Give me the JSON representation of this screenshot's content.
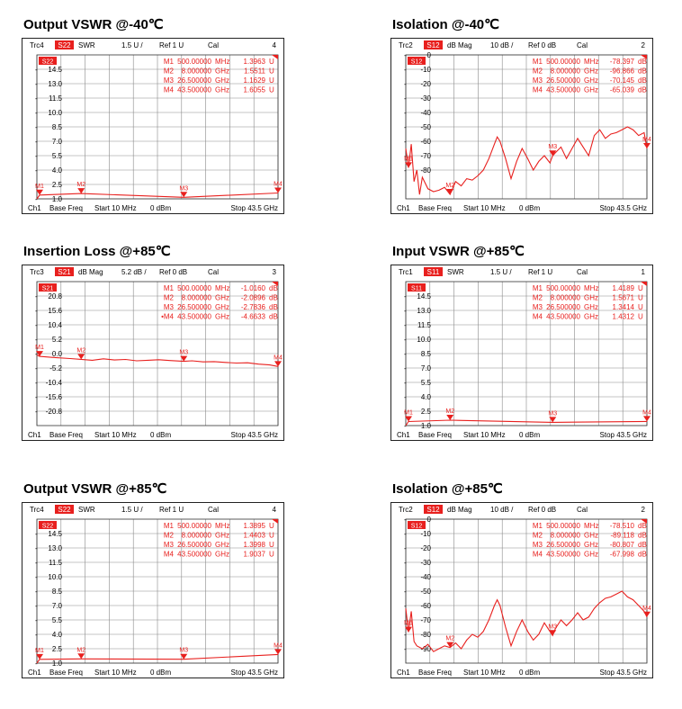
{
  "colors": {
    "trace": "#e8201e",
    "grid": "#8a8a8a",
    "text": "#000000",
    "marker": "#e8201e"
  },
  "charts": [
    {
      "title": "Output VSWR @-40℃",
      "header": {
        "trc": "Trc4",
        "param": "S22",
        "format": "SWR",
        "scale": "1.5 U /",
        "ref": "Ref 1 U",
        "cal": "Cal",
        "num": "4"
      },
      "footer": {
        "ch": "Ch1",
        "base": "Base Freq",
        "start": "Start  10 MHz",
        "power": "0 dBm",
        "stop": "Stop  43.5 GHz"
      },
      "marker_table": [
        {
          "name": "M1",
          "freq": "500.00000",
          "unit": "MHz",
          "value": "1.3963",
          "vunit": "U"
        },
        {
          "name": "M2",
          "freq": "8.000000",
          "unit": "GHz",
          "value": "1.5511",
          "vunit": "U"
        },
        {
          "name": "M3",
          "freq": "26.500000",
          "unit": "GHz",
          "value": "1.1629",
          "vunit": "U"
        },
        {
          "name": "M4",
          "freq": "43.500000",
          "unit": "GHz",
          "value": "1.6055",
          "vunit": "U"
        }
      ]
    },
    {
      "title": "Isolation @-40℃",
      "header": {
        "trc": "Trc2",
        "param": "S12",
        "format": "dB Mag",
        "scale": "10 dB /",
        "ref": "Ref 0 dB",
        "cal": "Cal",
        "num": "2"
      },
      "footer": {
        "ch": "Ch1",
        "base": "Base Freq",
        "start": "Start  10 MHz",
        "power": "0 dBm",
        "stop": "Stop  43.5 GHz"
      },
      "marker_table": [
        {
          "name": "M1",
          "freq": "500.00000",
          "unit": "MHz",
          "value": "-78.397",
          "vunit": "dB"
        },
        {
          "name": "M2",
          "freq": "8.000000",
          "unit": "GHz",
          "value": "-96.866",
          "vunit": "dB"
        },
        {
          "name": "M3",
          "freq": "26.500000",
          "unit": "GHz",
          "value": "-70.145",
          "vunit": "dB"
        },
        {
          "name": "M4",
          "freq": "43.500000",
          "unit": "GHz",
          "value": "-65.039",
          "vunit": "dB"
        }
      ]
    },
    {
      "title": "Insertion Loss @+85℃",
      "header": {
        "trc": "Trc3",
        "param": "S21",
        "format": "dB Mag",
        "scale": "5.2 dB /",
        "ref": "Ref 0 dB",
        "cal": "Cal",
        "num": "3"
      },
      "footer": {
        "ch": "Ch1",
        "base": "Base Freq",
        "start": "Start  10 MHz",
        "power": "0 dBm",
        "stop": "Stop  43.5 GHz"
      },
      "marker_table": [
        {
          "name": "M1",
          "freq": "500.00000",
          "unit": "MHz",
          "value": "-1.0160",
          "vunit": "dB"
        },
        {
          "name": "M2",
          "freq": "8.000000",
          "unit": "GHz",
          "value": "-2.0896",
          "vunit": "dB"
        },
        {
          "name": "M3",
          "freq": "26.500000",
          "unit": "GHz",
          "value": "-2.7836",
          "vunit": "dB"
        },
        {
          "name": "•M4",
          "freq": "43.500000",
          "unit": "GHz",
          "value": "-4.6633",
          "vunit": "dB"
        }
      ]
    },
    {
      "title": "Input VSWR @+85℃",
      "header": {
        "trc": "Trc1",
        "param": "S11",
        "format": "SWR",
        "scale": "1.5 U /",
        "ref": "Ref 1 U",
        "cal": "Cal",
        "num": "1"
      },
      "footer": {
        "ch": "Ch1",
        "base": "Base Freq",
        "start": "Start  10 MHz",
        "power": "0 dBm",
        "stop": "Stop  43.5 GHz"
      },
      "marker_table": [
        {
          "name": "M1",
          "freq": "500.00000",
          "unit": "MHz",
          "value": "1.4189",
          "vunit": "U"
        },
        {
          "name": "M2",
          "freq": "8.000000",
          "unit": "GHz",
          "value": "1.5671",
          "vunit": "U"
        },
        {
          "name": "M3",
          "freq": "26.500000",
          "unit": "GHz",
          "value": "1.3414",
          "vunit": "U"
        },
        {
          "name": "M4",
          "freq": "43.500000",
          "unit": "GHz",
          "value": "1.4312",
          "vunit": "U"
        }
      ]
    },
    {
      "title": "Output VSWR @+85℃",
      "header": {
        "trc": "Trc4",
        "param": "S22",
        "format": "SWR",
        "scale": "1.5 U /",
        "ref": "Ref 1 U",
        "cal": "Cal",
        "num": "4"
      },
      "footer": {
        "ch": "Ch1",
        "base": "Base Freq",
        "start": "Start  10 MHz",
        "power": "0 dBm",
        "stop": "Stop  43.5 GHz"
      },
      "marker_table": [
        {
          "name": "M1",
          "freq": "500.00000",
          "unit": "MHz",
          "value": "1.3895",
          "vunit": "U"
        },
        {
          "name": "M2",
          "freq": "8.000000",
          "unit": "GHz",
          "value": "1.4403",
          "vunit": "U"
        },
        {
          "name": "M3",
          "freq": "26.500000",
          "unit": "GHz",
          "value": "1.3998",
          "vunit": "U"
        },
        {
          "name": "M4",
          "freq": "43.500000",
          "unit": "GHz",
          "value": "1.9037",
          "vunit": "U"
        }
      ]
    },
    {
      "title": "Isolation @+85℃",
      "header": {
        "trc": "Trc2",
        "param": "S12",
        "format": "dB Mag",
        "scale": "10 dB /",
        "ref": "Ref 0 dB",
        "cal": "Cal",
        "num": "2"
      },
      "footer": {
        "ch": "Ch1",
        "base": "Base Freq",
        "start": "Start  10 MHz",
        "power": "0 dBm",
        "stop": "Stop  43.5 GHz"
      },
      "marker_table": [
        {
          "name": "M1",
          "freq": "500.00000",
          "unit": "MHz",
          "value": "-78.510",
          "vunit": "dB"
        },
        {
          "name": "M2",
          "freq": "8.000000",
          "unit": "GHz",
          "value": "-89.118",
          "vunit": "dB"
        },
        {
          "name": "M3",
          "freq": "26.500000",
          "unit": "GHz",
          "value": "-80.807",
          "vunit": "dB"
        },
        {
          "name": "M4",
          "freq": "43.500000",
          "unit": "GHz",
          "value": "-67.998",
          "vunit": "dB"
        }
      ]
    }
  ],
  "chart_data": [
    {
      "type": "line",
      "xlim": [
        0.01,
        43.5
      ],
      "ylim": [
        1.0,
        16.0
      ],
      "yticks": [
        "14.5",
        "13.0",
        "11.5",
        "10.0",
        "8.5",
        "7.0",
        "5.5",
        "4.0",
        "2.5",
        "1.0"
      ],
      "ytick_values": [
        14.5,
        13.0,
        11.5,
        10.0,
        8.5,
        7.0,
        5.5,
        4.0,
        2.5,
        1.0
      ],
      "series": [
        {
          "x": [
            0.01,
            0.5,
            8.0,
            26.5,
            43.5
          ],
          "values": [
            1.0,
            1.3963,
            1.5511,
            1.1629,
            1.6055
          ]
        }
      ],
      "markers": [
        {
          "name": "M1",
          "x": 0.5,
          "y": 1.3963
        },
        {
          "name": "M2",
          "x": 8.0,
          "y": 1.5511
        },
        {
          "name": "M3",
          "x": 26.5,
          "y": 1.1629
        },
        {
          "name": "M4",
          "x": 43.5,
          "y": 1.6055
        }
      ]
    },
    {
      "type": "line",
      "xlim": [
        0.01,
        43.5
      ],
      "ylim": [
        -100,
        0
      ],
      "yticks": [
        "0",
        "-10",
        "-20",
        "-30",
        "-40",
        "-50",
        "-60",
        "-70",
        "-80"
      ],
      "ytick_values": [
        0,
        -10,
        -20,
        -30,
        -40,
        -50,
        -60,
        -70,
        -80
      ],
      "series": [
        {
          "x": [
            0.01,
            0.5,
            1,
            1.5,
            2,
            2.5,
            3,
            4,
            5,
            6,
            7,
            8,
            9,
            10,
            11,
            12,
            13,
            14,
            15,
            16,
            16.5,
            17,
            18,
            19,
            20,
            21,
            22,
            23,
            24,
            25,
            26,
            26.5,
            27,
            28,
            29,
            30,
            31,
            32,
            33,
            34,
            35,
            36,
            37,
            38,
            39,
            40,
            41,
            42,
            43,
            43.5
          ],
          "values": [
            -65,
            -78.4,
            -62,
            -88,
            -80,
            -97,
            -85,
            -93,
            -95,
            -94,
            -92,
            -96.9,
            -88,
            -91,
            -86,
            -87,
            -84,
            -80,
            -72,
            -62,
            -57,
            -60,
            -72,
            -86,
            -74,
            -65,
            -72,
            -80,
            -74,
            -70,
            -75,
            -70.1,
            -68,
            -64,
            -72,
            -65,
            -58,
            -64,
            -70,
            -56,
            -52,
            -58,
            -55,
            -54,
            -52,
            -50,
            -52,
            -56,
            -54,
            -65.0
          ]
        }
      ],
      "markers": [
        {
          "name": "M1",
          "x": 0.5,
          "y": -78.397
        },
        {
          "name": "M2",
          "x": 8.0,
          "y": -96.866
        },
        {
          "name": "M3",
          "x": 26.5,
          "y": -70.145
        },
        {
          "name": "M4",
          "x": 43.5,
          "y": -65.039
        }
      ]
    },
    {
      "type": "line",
      "xlim": [
        0.01,
        43.5
      ],
      "ylim": [
        -26,
        26
      ],
      "yticks": [
        "20.8",
        "15.6",
        "10.4",
        "5.2",
        "0.0",
        "-5.2",
        "-10.4",
        "-15.6",
        "-20.8"
      ],
      "ytick_values": [
        20.8,
        15.6,
        10.4,
        5.2,
        0.0,
        -5.2,
        -10.4,
        -15.6,
        -20.8
      ],
      "series": [
        {
          "x": [
            0.01,
            0.5,
            3,
            6,
            8,
            10,
            12,
            14,
            16,
            18,
            20,
            22,
            24,
            26.5,
            28,
            30,
            32,
            34,
            36,
            38,
            40,
            42,
            43.5
          ],
          "values": [
            -0.5,
            -1.016,
            -1.4,
            -1.8,
            -2.09,
            -2.4,
            -1.9,
            -2.3,
            -2.1,
            -2.6,
            -2.4,
            -2.2,
            -2.5,
            -2.78,
            -2.6,
            -3.0,
            -2.9,
            -3.2,
            -3.4,
            -3.3,
            -3.8,
            -4.1,
            -4.66
          ]
        }
      ],
      "markers": [
        {
          "name": "M1",
          "x": 0.5,
          "y": -1.016
        },
        {
          "name": "M2",
          "x": 8.0,
          "y": -2.0896
        },
        {
          "name": "M3",
          "x": 26.5,
          "y": -2.7836
        },
        {
          "name": "M4",
          "x": 43.5,
          "y": -4.6633
        }
      ]
    },
    {
      "type": "line",
      "xlim": [
        0.01,
        43.5
      ],
      "ylim": [
        1.0,
        16.0
      ],
      "yticks": [
        "14.5",
        "13.0",
        "11.5",
        "10.0",
        "8.5",
        "7.0",
        "5.5",
        "4.0",
        "2.5",
        "1.0"
      ],
      "ytick_values": [
        14.5,
        13.0,
        11.5,
        10.0,
        8.5,
        7.0,
        5.5,
        4.0,
        2.5,
        1.0
      ],
      "series": [
        {
          "x": [
            0.01,
            0.5,
            8.0,
            26.5,
            43.5
          ],
          "values": [
            1.0,
            1.4189,
            1.5671,
            1.3414,
            1.4312
          ]
        }
      ],
      "markers": [
        {
          "name": "M1",
          "x": 0.5,
          "y": 1.4189
        },
        {
          "name": "M2",
          "x": 8.0,
          "y": 1.5671
        },
        {
          "name": "M3",
          "x": 26.5,
          "y": 1.3414
        },
        {
          "name": "M4",
          "x": 43.5,
          "y": 1.4312
        }
      ]
    },
    {
      "type": "line",
      "xlim": [
        0.01,
        43.5
      ],
      "ylim": [
        1.0,
        16.0
      ],
      "yticks": [
        "14.5",
        "13.0",
        "11.5",
        "10.0",
        "8.5",
        "7.0",
        "5.5",
        "4.0",
        "2.5",
        "1.0"
      ],
      "ytick_values": [
        14.5,
        13.0,
        11.5,
        10.0,
        8.5,
        7.0,
        5.5,
        4.0,
        2.5,
        1.0
      ],
      "series": [
        {
          "x": [
            0.01,
            0.5,
            8.0,
            26.5,
            43.5
          ],
          "values": [
            1.0,
            1.3895,
            1.4403,
            1.3998,
            1.9037
          ]
        }
      ],
      "markers": [
        {
          "name": "M1",
          "x": 0.5,
          "y": 1.3895
        },
        {
          "name": "M2",
          "x": 8.0,
          "y": 1.4403
        },
        {
          "name": "M3",
          "x": 26.5,
          "y": 1.3998
        },
        {
          "name": "M4",
          "x": 43.5,
          "y": 1.9037
        }
      ]
    },
    {
      "type": "line",
      "xlim": [
        0.01,
        43.5
      ],
      "ylim": [
        -100,
        0
      ],
      "yticks": [
        "0",
        "-10",
        "-20",
        "-30",
        "-40",
        "-50",
        "-60",
        "-70",
        "-80",
        "-90"
      ],
      "ytick_values": [
        0,
        -10,
        -20,
        -30,
        -40,
        -50,
        -60,
        -70,
        -80,
        -90
      ],
      "series": [
        {
          "x": [
            0.01,
            0.5,
            1,
            1.5,
            2,
            3,
            4,
            5,
            6,
            7,
            8,
            9,
            10,
            11,
            12,
            13,
            14,
            15,
            16,
            16.5,
            17,
            18,
            19,
            20,
            21,
            22,
            23,
            24,
            25,
            26,
            26.5,
            27,
            28,
            29,
            30,
            31,
            32,
            33,
            34,
            35,
            36,
            37,
            38,
            39,
            40,
            41,
            42,
            43,
            43.5
          ],
          "values": [
            -62,
            -78.5,
            -64,
            -85,
            -88,
            -90,
            -87,
            -92,
            -90,
            -88,
            -89.1,
            -86,
            -90,
            -84,
            -80,
            -82,
            -78,
            -70,
            -60,
            -56,
            -60,
            -75,
            -88,
            -78,
            -70,
            -78,
            -84,
            -80,
            -72,
            -78,
            -80.8,
            -76,
            -70,
            -74,
            -70,
            -65,
            -70,
            -68,
            -62,
            -58,
            -55,
            -54,
            -52,
            -50,
            -54,
            -56,
            -60,
            -64,
            -68.0
          ]
        }
      ],
      "markers": [
        {
          "name": "M1",
          "x": 0.5,
          "y": -78.51
        },
        {
          "name": "M2",
          "x": 8.0,
          "y": -89.118
        },
        {
          "name": "M3",
          "x": 26.5,
          "y": -80.807
        },
        {
          "name": "M4",
          "x": 43.5,
          "y": -67.998
        }
      ]
    }
  ]
}
